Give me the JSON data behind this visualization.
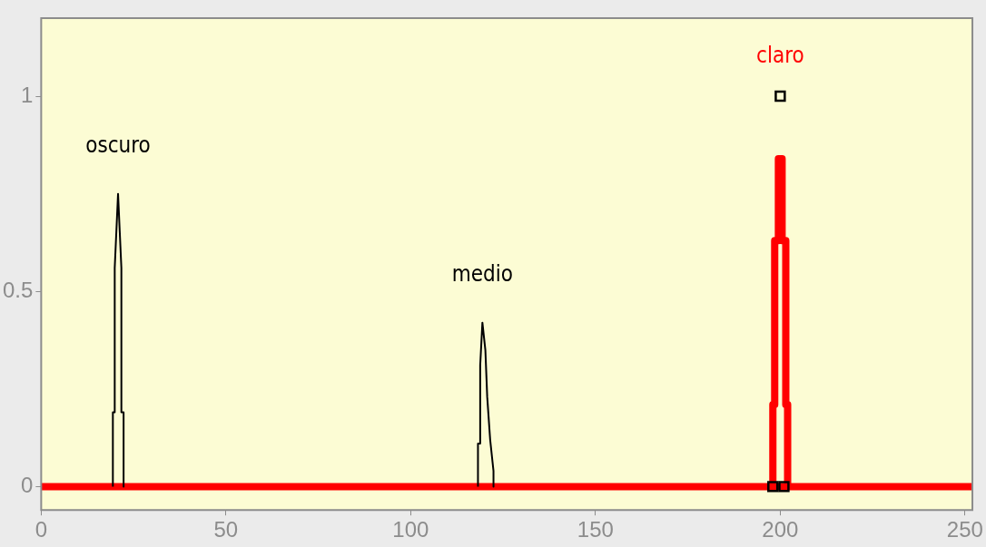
{
  "chart_data": {
    "type": "line",
    "xlim": [
      0,
      252
    ],
    "xticks": [
      0,
      50,
      100,
      150,
      200,
      250
    ],
    "ylim": [
      -0.06,
      1.2
    ],
    "yticks": [
      0,
      0.5,
      1
    ],
    "grid": false,
    "legend": false,
    "marker": "none",
    "series": [
      {
        "color": "#000000",
        "x": [
          19.4,
          19.4,
          19.9,
          19.9,
          20.8,
          21.7,
          21.7,
          22.3,
          22.3
        ],
        "values": [
          0,
          0.19,
          0.19,
          0.56,
          0.75,
          0.56,
          0.19,
          0.19,
          0
        ]
      },
      {
        "color": "#000000",
        "x": [
          118.2,
          118.2,
          118.8,
          118.8,
          119.4,
          120.2,
          120.7,
          121.5,
          122.4,
          122.4
        ],
        "values": [
          0,
          0.11,
          0.11,
          0.31,
          0.42,
          0.35,
          0.23,
          0.12,
          0.04,
          0
        ]
      },
      {
        "color": "#ff0000",
        "x": [
          198,
          198,
          198.5,
          198.5,
          199.5,
          199.5,
          200.5,
          200.5,
          201.5,
          201.5,
          202,
          202
        ],
        "values": [
          0,
          0.21,
          0.21,
          0.63,
          0.63,
          0.84,
          0.84,
          0.63,
          0.63,
          0.21,
          0.21,
          0
        ]
      },
      {
        "color": "#ff0000",
        "x": [
          0,
          252
        ],
        "values": [
          0,
          0
        ]
      },
      {
        "type": "scatter",
        "marker": "square",
        "color": "#000000",
        "x": [
          200,
          198,
          201
        ],
        "values": [
          1,
          0,
          0
        ]
      }
    ],
    "annotations": [
      "oscuro",
      "medio",
      "claro"
    ]
  }
}
